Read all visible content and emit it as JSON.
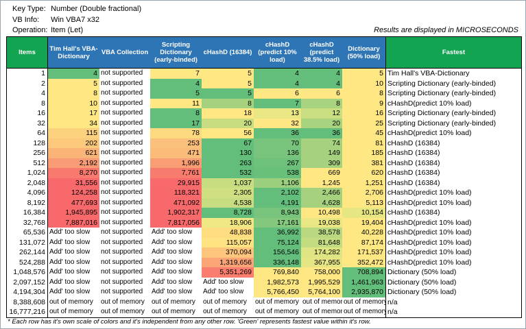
{
  "meta": {
    "key_type": {
      "label": "Key Type:",
      "value": "Number (Double fractional)"
    },
    "vb_info": {
      "label": "VB Info:",
      "value": "Win VBA7 x32"
    },
    "operation": {
      "label": "Operation:",
      "value": "Item (Let)"
    }
  },
  "results_note": "Results are displayed in MICROSECONDS",
  "footnote": "* Each row has it's own scale of colors and it's independent from any other row. 'Green' represents fastest value within it's row.",
  "colors": {
    "header_blue": "#2E75B6",
    "header_green": "#12A450",
    "scale_green": "#63BE7B",
    "scale_yellow": "#FFE884",
    "scale_red": "#F8696B"
  },
  "table": {
    "column_keys": [
      "items",
      "tim-hall-vba-dictionary",
      "vba-collection",
      "scripting-dictionary-early-binded",
      "chashd-16384",
      "chashd-predict-10-load",
      "chashd-predict-38-5-load",
      "dictionary-50-load",
      "fastest"
    ],
    "headers": [
      {
        "label": "Items",
        "theme": "green"
      },
      {
        "label": "Tim Hall's VBA-Dictionary",
        "theme": "blue"
      },
      {
        "label": "VBA Collection",
        "theme": "blue"
      },
      {
        "label": "Scripting Dictionary (early-binded)",
        "theme": "blue"
      },
      {
        "label": "cHashD (16384)",
        "theme": "blue"
      },
      {
        "label": "cHashD (predict 10% load)",
        "theme": "blue"
      },
      {
        "label": "cHashD (predict 38.5% load)",
        "theme": "blue"
      },
      {
        "label": "Dictionary (50% load)",
        "theme": "blue"
      },
      {
        "label": "Fastest",
        "theme": "green"
      }
    ],
    "rows": [
      {
        "items": "1",
        "cells": [
          [
            "4",
            "#63BE7B"
          ],
          [
            "not supported",
            "#FFFFFF"
          ],
          [
            "7",
            "#FFE884"
          ],
          [
            "5",
            "#FFE884"
          ],
          [
            "4",
            "#63BE7B"
          ],
          [
            "4",
            "#63BE7B"
          ],
          [
            "5",
            "#FFE884"
          ]
        ],
        "fastest": "Tim Hall's VBA-Dictionary"
      },
      {
        "items": "2",
        "cells": [
          [
            "5",
            "#FFE884"
          ],
          [
            "not supported",
            "#FFFFFF"
          ],
          [
            "4",
            "#63BE7B"
          ],
          [
            "5",
            "#FFE884"
          ],
          [
            "4",
            "#63BE7B"
          ],
          [
            "4",
            "#63BE7B"
          ],
          [
            "10",
            "#FFE884"
          ]
        ],
        "fastest": "Scripting Dictionary (early-binded)"
      },
      {
        "items": "4",
        "cells": [
          [
            "8",
            "#FFE884"
          ],
          [
            "not supported",
            "#FFFFFF"
          ],
          [
            "5",
            "#63BE7B"
          ],
          [
            "5",
            "#63BE7B"
          ],
          [
            "6",
            "#FFE884"
          ],
          [
            "6",
            "#FFE884"
          ],
          [
            "8",
            "#FFE884"
          ]
        ],
        "fastest": "Scripting Dictionary (early-binded)"
      },
      {
        "items": "8",
        "cells": [
          [
            "10",
            "#FFE884"
          ],
          [
            "not supported",
            "#FFFFFF"
          ],
          [
            "11",
            "#FFE884"
          ],
          [
            "8",
            "#A6D27F"
          ],
          [
            "7",
            "#63BE7B"
          ],
          [
            "8",
            "#A8D37F"
          ],
          [
            "9",
            "#FFE884"
          ]
        ],
        "fastest": "cHashD(predict 10% load)"
      },
      {
        "items": "16",
        "cells": [
          [
            "17",
            "#FFE884"
          ],
          [
            "not supported",
            "#FFFFFF"
          ],
          [
            "8",
            "#63BE7B"
          ],
          [
            "18",
            "#FFE884"
          ],
          [
            "13",
            "#E9E783"
          ],
          [
            "12",
            "#C9DD81"
          ],
          [
            "16",
            "#FFE884"
          ]
        ],
        "fastest": "Scripting Dictionary (early-binded)"
      },
      {
        "items": "32",
        "cells": [
          [
            "34",
            "#FFE884"
          ],
          [
            "not supported",
            "#FFFFFF"
          ],
          [
            "17",
            "#63BE7B"
          ],
          [
            "20",
            "#C8DC81"
          ],
          [
            "32",
            "#FFE884"
          ],
          [
            "20",
            "#A8D37F"
          ],
          [
            "25",
            "#FFE884"
          ]
        ],
        "fastest": "Scripting Dictionary (early-binded)"
      },
      {
        "items": "64",
        "cells": [
          [
            "115",
            "#FDD27E"
          ],
          [
            "not supported",
            "#FFFFFF"
          ],
          [
            "78",
            "#FDD980"
          ],
          [
            "56",
            "#FFE884"
          ],
          [
            "36",
            "#63BE7B"
          ],
          [
            "36",
            "#63BE7B"
          ],
          [
            "45",
            "#FFE884"
          ]
        ],
        "fastest": "cHashD(predict 10% load)"
      },
      {
        "items": "128",
        "cells": [
          [
            "202",
            "#FCC97D"
          ],
          [
            "not supported",
            "#FFFFFF"
          ],
          [
            "253",
            "#FBC07B"
          ],
          [
            "67",
            "#63BE7B"
          ],
          [
            "70",
            "#79C47C"
          ],
          [
            "74",
            "#A6D27F"
          ],
          [
            "81",
            "#FFE884"
          ]
        ],
        "fastest": "cHashD (16384)"
      },
      {
        "items": "256",
        "cells": [
          [
            "621",
            "#FBB478"
          ],
          [
            "not supported",
            "#FFFFFF"
          ],
          [
            "471",
            "#FBBB79"
          ],
          [
            "130",
            "#63BE7B"
          ],
          [
            "136",
            "#79C47C"
          ],
          [
            "149",
            "#A6D27F"
          ],
          [
            "185",
            "#FFE884"
          ]
        ],
        "fastest": "cHashD (16384)"
      },
      {
        "items": "512",
        "cells": [
          [
            "2,192",
            "#F99B74"
          ],
          [
            "not supported",
            "#FFFFFF"
          ],
          [
            "1,996",
            "#F99E74"
          ],
          [
            "263",
            "#63BE7B"
          ],
          [
            "267",
            "#6DC17A"
          ],
          [
            "309",
            "#A6D27F"
          ],
          [
            "381",
            "#FFE884"
          ]
        ],
        "fastest": "cHashD (16384)"
      },
      {
        "items": "1,024",
        "cells": [
          [
            "8,270",
            "#F87A6E"
          ],
          [
            "not supported",
            "#FFFFFF"
          ],
          [
            "7,761",
            "#F87C6E"
          ],
          [
            "532",
            "#63BE7B"
          ],
          [
            "538",
            "#68C07A"
          ],
          [
            "669",
            "#FFE884"
          ],
          [
            "620",
            "#FFE884"
          ]
        ],
        "fastest": "cHashD (16384)"
      },
      {
        "items": "2,048",
        "cells": [
          [
            "31,556",
            "#F8696B"
          ],
          [
            "not supported",
            "#FFFFFF"
          ],
          [
            "29,915",
            "#F86A6B"
          ],
          [
            "1,037",
            "#C8DC81"
          ],
          [
            "1,106",
            "#9BCF7E"
          ],
          [
            "1,245",
            "#FFE884"
          ],
          [
            "1,251",
            "#FFE884"
          ]
        ],
        "fastest": "cHashD (16384)"
      },
      {
        "items": "4,096",
        "cells": [
          [
            "124,258",
            "#F8696B"
          ],
          [
            "not supported",
            "#FFFFFF"
          ],
          [
            "118,321",
            "#F8696B"
          ],
          [
            "2,305",
            "#CFDF81"
          ],
          [
            "2,102",
            "#63BE7B"
          ],
          [
            "2,466",
            "#A6D27F"
          ],
          [
            "2,706",
            "#FFE884"
          ]
        ],
        "fastest": "cHashD(predict 10% load)"
      },
      {
        "items": "8,192",
        "cells": [
          [
            "477,693",
            "#F8696B"
          ],
          [
            "not supported",
            "#FFFFFF"
          ],
          [
            "471,092",
            "#F8696B"
          ],
          [
            "4,538",
            "#C8DC81"
          ],
          [
            "4,191",
            "#63BE7B"
          ],
          [
            "4,628",
            "#A6D27F"
          ],
          [
            "5,113",
            "#FFE884"
          ]
        ],
        "fastest": "cHashD(predict 10% load)"
      },
      {
        "items": "16,384",
        "cells": [
          [
            "1,945,895",
            "#F8696B"
          ],
          [
            "not supported",
            "#FFFFFF"
          ],
          [
            "1,902,317",
            "#F8696B"
          ],
          [
            "8,728",
            "#63BE7B"
          ],
          [
            "8,943",
            "#79C47C"
          ],
          [
            "10,498",
            "#FFE884"
          ],
          [
            "10,154",
            "#E6E783"
          ]
        ],
        "fastest": "cHashD (16384)"
      },
      {
        "items": "32,768",
        "cells": [
          [
            "7,887,016",
            "#F8696B"
          ],
          [
            "not supported",
            "#FFFFFF"
          ],
          [
            "7,817,056",
            "#F8696B"
          ],
          [
            "18,906",
            "#F0E884"
          ],
          [
            "17,161",
            "#84C87D"
          ],
          [
            "19,038",
            "#E9E783"
          ],
          [
            "19,404",
            "#FFE884"
          ]
        ],
        "fastest": "cHashD(predict 10% load)"
      },
      {
        "items": "65,536",
        "cells": [
          [
            "Add' too slow",
            "#FFFFFF"
          ],
          [
            "not supported",
            "#FFFFFF"
          ],
          [
            "Add' too slow",
            "#FFFFFF"
          ],
          [
            "48,838",
            "#FFDC80"
          ],
          [
            "36,992",
            "#63BE7B"
          ],
          [
            "38,578",
            "#B9D880"
          ],
          [
            "40,228",
            "#FFE884"
          ]
        ],
        "fastest": "cHashD(predict 10% load)"
      },
      {
        "items": "131,072",
        "cells": [
          [
            "Add' too slow",
            "#FFFFFF"
          ],
          [
            "not supported",
            "#FFFFFF"
          ],
          [
            "Add' too slow",
            "#FFFFFF"
          ],
          [
            "115,057",
            "#FFE282"
          ],
          [
            "75,124",
            "#63BE7B"
          ],
          [
            "81,648",
            "#C3DB81"
          ],
          [
            "87,174",
            "#FFE884"
          ]
        ],
        "fastest": "cHashD(predict 10% load)"
      },
      {
        "items": "262,144",
        "cells": [
          [
            "Add' too slow",
            "#FFFFFF"
          ],
          [
            "not supported",
            "#FFFFFF"
          ],
          [
            "Add' too slow",
            "#FFFFFF"
          ],
          [
            "370,094",
            "#FDC67C"
          ],
          [
            "156,546",
            "#63BE7B"
          ],
          [
            "174,282",
            "#E0E583"
          ],
          [
            "171,537",
            "#FFE884"
          ]
        ],
        "fastest": "cHashD(predict 10% load)"
      },
      {
        "items": "524,288",
        "cells": [
          [
            "Add' too slow",
            "#FFFFFF"
          ],
          [
            "not supported",
            "#FFFFFF"
          ],
          [
            "Add' too slow",
            "#FFFFFF"
          ],
          [
            "1,319,656",
            "#FBA476"
          ],
          [
            "336,148",
            "#63BE7B"
          ],
          [
            "367,955",
            "#E5E683"
          ],
          [
            "352,472",
            "#FFE884"
          ]
        ],
        "fastest": "cHashD(predict 10% load)"
      },
      {
        "items": "1,048,576",
        "cells": [
          [
            "Add' too slow",
            "#FFFFFF"
          ],
          [
            "not supported",
            "#FFFFFF"
          ],
          [
            "Add' too slow",
            "#FFFFFF"
          ],
          [
            "5,351,269",
            "#F97E6F"
          ],
          [
            "769,840",
            "#FFE884"
          ],
          [
            "758,000",
            "#FFE884"
          ],
          [
            "708,894",
            "#63BE7B"
          ]
        ],
        "fastest": "Dictionary (50% load)"
      },
      {
        "items": "2,097,152",
        "cells": [
          [
            "Add' too slow",
            "#FFFFFF"
          ],
          [
            "not supported",
            "#FFFFFF"
          ],
          [
            "Add' too slow",
            "#FFFFFF"
          ],
          [
            "Add' too slow",
            "#FFFFFF"
          ],
          [
            "1,982,573",
            "#FFE884"
          ],
          [
            "1,995,529",
            "#FFE884"
          ],
          [
            "1,461,963",
            "#63BE7B"
          ]
        ],
        "fastest": "Dictionary (50% load)"
      },
      {
        "items": "4,194,304",
        "cells": [
          [
            "Add' too slow",
            "#FFFFFF"
          ],
          [
            "not supported",
            "#FFFFFF"
          ],
          [
            "Add' too slow",
            "#FFFFFF"
          ],
          [
            "Add' too slow",
            "#FFFFFF"
          ],
          [
            "5,766,450",
            "#FFE884"
          ],
          [
            "5,764,100",
            "#FFE884"
          ],
          [
            "2,935,870",
            "#63BE7B"
          ]
        ],
        "fastest": "Dictionary (50% load)"
      },
      {
        "items": "8,388,608",
        "cells": [
          [
            "out of memory",
            "#FFFFFF"
          ],
          [
            "out of memory",
            "#FFFFFF"
          ],
          [
            "out of memory",
            "#FFFFFF"
          ],
          [
            "out of memory",
            "#FFFFFF"
          ],
          [
            "out of memory",
            "#FFFFFF"
          ],
          [
            "out of memory",
            "#FFFFFF"
          ],
          [
            "out of memory",
            "#FFFFFF"
          ]
        ],
        "fastest": "n/a"
      },
      {
        "items": "16,777,216",
        "cells": [
          [
            "out of memory",
            "#FFFFFF"
          ],
          [
            "out of memory",
            "#FFFFFF"
          ],
          [
            "out of memory",
            "#FFFFFF"
          ],
          [
            "out of memory",
            "#FFFFFF"
          ],
          [
            "out of memory",
            "#FFFFFF"
          ],
          [
            "out of memory",
            "#FFFFFF"
          ],
          [
            "out of memory",
            "#FFFFFF"
          ]
        ],
        "fastest": "n/a"
      }
    ]
  }
}
